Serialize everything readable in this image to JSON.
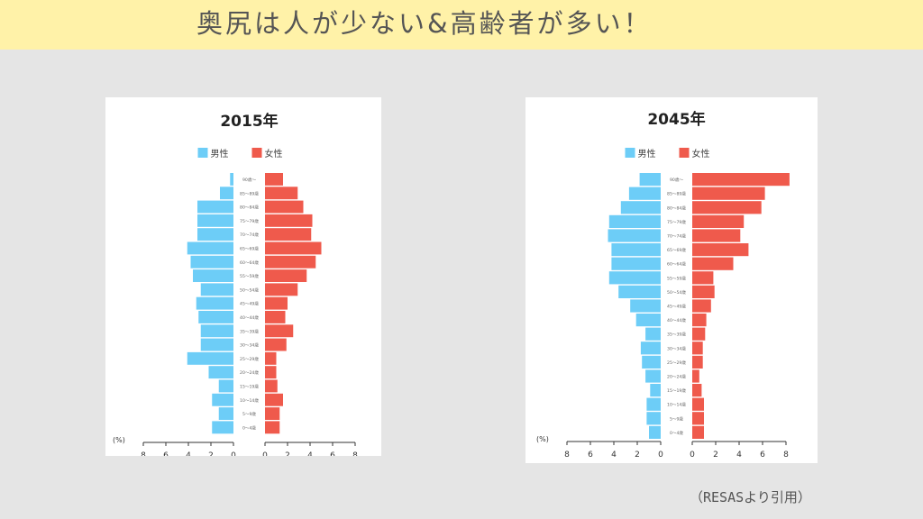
{
  "header": {
    "title": "奥尻は人が少ない&高齢者が多い！"
  },
  "source_note": "（RESASより引用）",
  "colors": {
    "male": "#6dcdf7",
    "female": "#ef5a4c",
    "banner": "#fff2a8",
    "background": "#e5e5e5"
  },
  "chart_data": [
    {
      "type": "bar",
      "orientation": "horizontal-pyramid",
      "title": "2015年",
      "legend": {
        "male": "男性",
        "female": "女性",
        "placement": "top-center"
      },
      "unit_label": "(%)",
      "categories": [
        "90歳～",
        "85～89歳",
        "80～84歳",
        "75～79歳",
        "70～74歳",
        "65～69歳",
        "60～64歳",
        "55～59歳",
        "50～54歳",
        "45～49歳",
        "40～44歳",
        "35～39歳",
        "30～34歳",
        "25～29歳",
        "20～24歳",
        "15～19歳",
        "10～14歳",
        "5～9歳",
        "0～4歳"
      ],
      "series": [
        {
          "name": "男性",
          "values": [
            0.3,
            1.2,
            3.2,
            3.2,
            3.2,
            4.1,
            3.8,
            3.6,
            2.9,
            3.3,
            3.1,
            2.9,
            2.9,
            4.1,
            2.2,
            1.3,
            1.9,
            1.3,
            1.9
          ]
        },
        {
          "name": "女性",
          "values": [
            1.6,
            2.9,
            3.4,
            4.2,
            4.1,
            5.0,
            4.5,
            3.7,
            2.9,
            2.0,
            1.8,
            2.5,
            1.9,
            1.0,
            1.0,
            1.1,
            1.6,
            1.3,
            1.3
          ]
        }
      ],
      "xticks": [
        "8",
        "6",
        "4",
        "2",
        "0"
      ],
      "xlim": [
        0,
        8
      ]
    },
    {
      "type": "bar",
      "orientation": "horizontal-pyramid",
      "title": "2045年",
      "legend": {
        "male": "男性",
        "female": "女性",
        "placement": "top-center"
      },
      "unit_label": "(%)",
      "categories": [
        "90歳～",
        "85～89歳",
        "80～84歳",
        "75～79歳",
        "70～74歳",
        "65～69歳",
        "60～64歳",
        "55～59歳",
        "50～54歳",
        "45～49歳",
        "40～44歳",
        "35～39歳",
        "30～34歳",
        "25～29歳",
        "20～24歳",
        "15～19歳",
        "10～14歳",
        "5～9歳",
        "0～4歳"
      ],
      "series": [
        {
          "name": "男性",
          "values": [
            1.8,
            2.7,
            3.4,
            4.4,
            4.5,
            4.2,
            4.2,
            4.4,
            3.6,
            2.6,
            2.1,
            1.3,
            1.7,
            1.6,
            1.3,
            0.9,
            1.2,
            1.2,
            1.0
          ]
        },
        {
          "name": "女性",
          "values": [
            8.3,
            6.2,
            5.9,
            4.4,
            4.1,
            4.8,
            3.5,
            1.8,
            1.9,
            1.6,
            1.2,
            1.1,
            0.9,
            0.9,
            0.6,
            0.8,
            1.0,
            1.0,
            1.0
          ]
        }
      ],
      "xticks": [
        "8",
        "6",
        "4",
        "2",
        "0"
      ],
      "xlim": [
        0,
        8
      ]
    }
  ]
}
